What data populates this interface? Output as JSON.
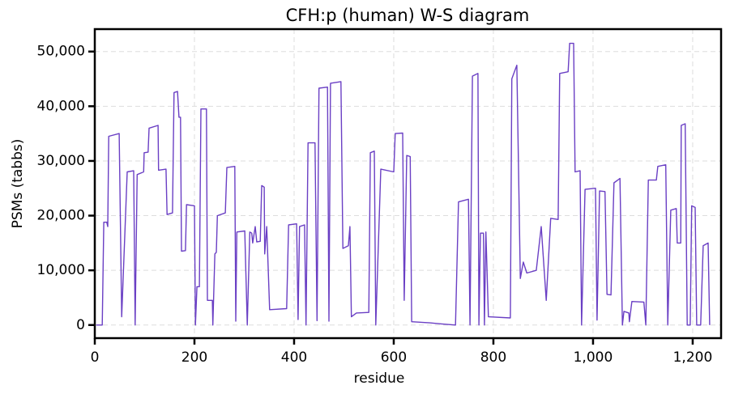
{
  "chart_data": {
    "type": "line",
    "title": "CFH:p (human) W-S diagram",
    "x_label": "residue",
    "y_label": "PSMs (tabbs)",
    "xlim": [
      0,
      1257
    ],
    "ylim": [
      -2400,
      54100
    ],
    "xticks": [
      0,
      200,
      400,
      600,
      800,
      {
        "value": 1000,
        "label": "1,000"
      },
      {
        "value": 1200,
        "label": "1,200"
      }
    ],
    "yticks": [
      0,
      {
        "value": 10000,
        "label": "10,000"
      },
      {
        "value": 20000,
        "label": "20,000"
      },
      {
        "value": 30000,
        "label": "30,000"
      },
      {
        "value": 40000,
        "label": "40,000"
      },
      {
        "value": 50000,
        "label": "50,000"
      }
    ],
    "grid": true,
    "series": [
      {
        "name": "PSMs",
        "color": "#6a3fc4",
        "x": [
          3,
          15,
          18,
          24,
          26,
          28,
          49,
          54,
          65,
          78,
          81,
          85,
          98,
          99,
          107,
          109,
          127,
          128,
          143,
          145,
          156,
          159,
          166,
          169,
          172,
          174,
          182,
          184,
          200,
          202,
          205,
          210,
          213,
          224,
          226,
          236,
          237,
          241,
          244,
          246,
          262,
          265,
          281,
          283,
          285,
          301,
          306,
          311,
          315,
          317,
          322,
          325,
          332,
          335,
          340,
          341,
          345,
          351,
          385,
          389,
          405,
          408,
          411,
          421,
          424,
          428,
          442,
          446,
          450,
          467,
          470,
          473,
          494,
          498,
          509,
          512,
          515,
          525,
          550,
          553,
          561,
          564,
          574,
          600,
          603,
          618,
          621,
          626,
          633,
          636,
          672,
          696,
          724,
          730,
          750,
          753,
          758,
          769,
          771,
          774,
          780,
          782,
          785,
          790,
          834,
          837,
          847,
          854,
          860,
          867,
          886,
          896,
          906,
          915,
          930,
          933,
          950,
          953,
          961,
          964,
          974,
          977,
          984,
          1005,
          1008,
          1013,
          1024,
          1028,
          1036,
          1042,
          1054,
          1059,
          1062,
          1072,
          1073,
          1078,
          1102,
          1106,
          1111,
          1127,
          1130,
          1146,
          1150,
          1156,
          1167,
          1169,
          1176,
          1177,
          1185,
          1189,
          1195,
          1198,
          1205,
          1208,
          1216,
          1221,
          1231,
          1234
        ],
        "values": [
          0,
          0,
          18800,
          18800,
          18000,
          34500,
          35000,
          1500,
          28000,
          28200,
          0,
          27500,
          28000,
          31500,
          31600,
          36000,
          36500,
          28300,
          28500,
          20200,
          20500,
          42500,
          42700,
          38000,
          38000,
          13500,
          13600,
          22000,
          21800,
          0,
          7000,
          7000,
          39500,
          39500,
          4500,
          4500,
          0,
          13000,
          13300,
          20000,
          20500,
          28800,
          29000,
          700,
          17000,
          17200,
          0,
          17000,
          16800,
          15000,
          18000,
          15200,
          15300,
          25500,
          25200,
          13000,
          18000,
          2800,
          3000,
          18300,
          18500,
          1000,
          18000,
          18300,
          0,
          33300,
          33300,
          800,
          43300,
          43500,
          700,
          44200,
          44500,
          14000,
          14500,
          18000,
          1500,
          2200,
          2300,
          31500,
          31800,
          0,
          28500,
          28000,
          35000,
          35100,
          4500,
          31000,
          30800,
          600,
          400,
          200,
          0,
          22500,
          23000,
          0,
          45500,
          46000,
          0,
          16800,
          16800,
          0,
          17000,
          1500,
          1300,
          45000,
          47500,
          8500,
          11500,
          9500,
          10000,
          18000,
          4500,
          19500,
          19300,
          46000,
          46300,
          51500,
          51500,
          28000,
          28200,
          0,
          24800,
          25000,
          900,
          24500,
          24400,
          5600,
          5500,
          26000,
          26800,
          0,
          2500,
          2200,
          600,
          4300,
          4200,
          0,
          26500,
          26500,
          29000,
          29300,
          0,
          21000,
          21300,
          15000,
          15000,
          36500,
          36800,
          0,
          0,
          21800,
          21500,
          0,
          0,
          14500,
          15000,
          0
        ]
      }
    ]
  }
}
